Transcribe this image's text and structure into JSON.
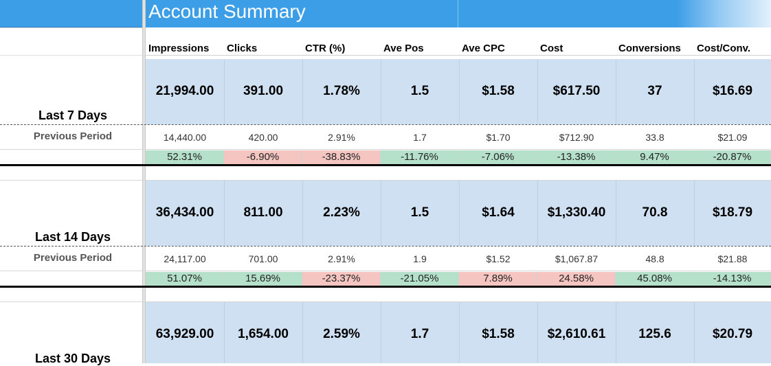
{
  "title": "Account Summary",
  "columns": [
    "Impressions",
    "Clicks",
    "CTR (%)",
    "Ave Pos",
    "Ave CPC",
    "Cost",
    "Conversions",
    "Cost/Conv."
  ],
  "sections": [
    {
      "label": "Last 7 Days",
      "prev_label": "Previous Period",
      "current": [
        "21,994.00",
        "391.00",
        "1.78%",
        "1.5",
        "$1.58",
        "$617.50",
        "37",
        "$16.69"
      ],
      "previous": [
        "14,440.00",
        "420.00",
        "2.91%",
        "1.7",
        "$1.70",
        "$712.90",
        "33.8",
        "$21.09"
      ],
      "change": [
        "52.31%",
        "-6.90%",
        "-38.83%",
        "-11.76%",
        "-7.06%",
        "-13.38%",
        "9.47%",
        "-20.87%"
      ],
      "change_status": [
        "good",
        "bad",
        "bad",
        "good",
        "good",
        "good",
        "good",
        "good"
      ]
    },
    {
      "label": "Last 14 Days",
      "prev_label": "Previous Period",
      "current": [
        "36,434.00",
        "811.00",
        "2.23%",
        "1.5",
        "$1.64",
        "$1,330.40",
        "70.8",
        "$18.79"
      ],
      "previous": [
        "24,117.00",
        "701.00",
        "2.91%",
        "1.9",
        "$1.52",
        "$1,067.87",
        "48.8",
        "$21.88"
      ],
      "change": [
        "51.07%",
        "15.69%",
        "-23.37%",
        "-21.05%",
        "7.89%",
        "24.58%",
        "45.08%",
        "-14.13%"
      ],
      "change_status": [
        "good",
        "good",
        "bad",
        "good",
        "bad",
        "bad",
        "good",
        "good"
      ]
    },
    {
      "label": "Last 30 Days",
      "current": [
        "63,929.00",
        "1,654.00",
        "2.59%",
        "1.7",
        "$1.58",
        "$2,610.61",
        "125.6",
        "$20.79"
      ]
    }
  ],
  "colors": {
    "title_bar": "#3d9ee8",
    "current_band": "#cfe0f2",
    "good": "#b5e1cb",
    "bad": "#f4c5c1"
  }
}
